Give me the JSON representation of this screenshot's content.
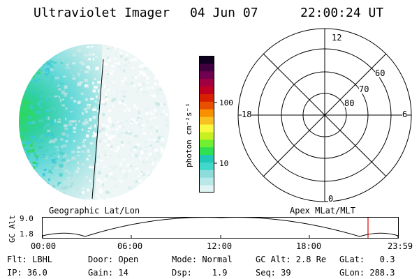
{
  "header": {
    "instrument": "Ultraviolet Imager",
    "date": "04 Jun 07",
    "time": "22:00:24 UT"
  },
  "colorbar": {
    "unit_label": "photon cm⁻²s⁻¹",
    "ticks": [
      "100",
      "10"
    ],
    "colors": [
      "#e0f4f4",
      "#b8e8e8",
      "#8cdcdc",
      "#40d8c8",
      "#20c8b8",
      "#30e050",
      "#70f030",
      "#c8f020",
      "#f8f840",
      "#f8c020",
      "#f89000",
      "#e85000",
      "#d82000",
      "#c00020",
      "#a00040",
      "#700050",
      "#400040",
      "#100020"
    ]
  },
  "polar_plot": {
    "mlt_labels": {
      "top": "12",
      "left": "18",
      "right": "6",
      "bottom": "0"
    },
    "lat_labels": [
      "60",
      "70",
      "80"
    ]
  },
  "left_panel_label": "Geographic Lat/Lon",
  "right_panel_label": "Apex MLat/MLT",
  "orbit": {
    "ylabel": "GC Alt",
    "ytick_top": "9.0",
    "ytick_bottom": "1.8",
    "xticks": [
      "00:00",
      "06:00",
      "12:00",
      "18:00",
      "23:59"
    ]
  },
  "footer": {
    "flt": "Flt: LBHL",
    "ip": "IP: 36.0",
    "door": "Door: Open",
    "gain": "Gain: 14",
    "mode": "Mode: Normal",
    "dsp": "Dsp:    1.9",
    "gcalt": "GC Alt: 2.8 Re",
    "seq": "Seq: 39",
    "glat": "GLat:   0.3",
    "glon": "GLon: 288.3"
  }
}
